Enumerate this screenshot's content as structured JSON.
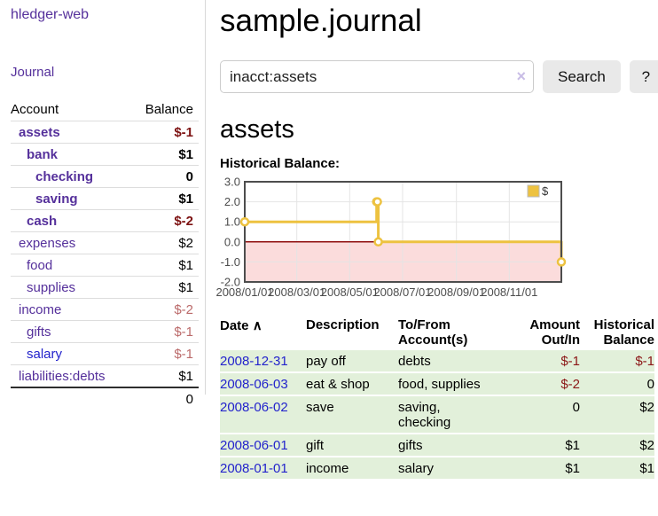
{
  "app": {
    "title": "hledger-web"
  },
  "colors": {
    "link_purple": "#55309b",
    "link_blue": "#2323cc",
    "negative_strong": "#7d1212",
    "negative_muted": "#bb6a6a",
    "register_negative": "#8b1616",
    "register_row_green": "#e2f0da",
    "chart_gold": "#edc240"
  },
  "sidebar": {
    "nav": {
      "journal_label": "Journal"
    },
    "accounts": {
      "headers": {
        "account": "Account",
        "balance": "Balance"
      },
      "rows": [
        {
          "name": "assets",
          "depth": 0,
          "bold": true,
          "link_color": "purple",
          "balance": "$-1",
          "balance_class": "neg-strong"
        },
        {
          "name": "bank",
          "depth": 1,
          "bold": true,
          "link_color": "purple",
          "balance": "$1",
          "balance_class": "pos-strong"
        },
        {
          "name": "checking",
          "depth": 2,
          "bold": true,
          "link_color": "purple",
          "balance": "0",
          "balance_class": "pos-strong"
        },
        {
          "name": "saving",
          "depth": 2,
          "bold": true,
          "link_color": "purple",
          "balance": "$1",
          "balance_class": "pos-strong"
        },
        {
          "name": "cash",
          "depth": 1,
          "bold": true,
          "link_color": "purple",
          "balance": "$-2",
          "balance_class": "neg-strong"
        },
        {
          "name": "expenses",
          "depth": 0,
          "bold": false,
          "link_color": "purple",
          "balance": "$2",
          "balance_class": "pos"
        },
        {
          "name": "food",
          "depth": 1,
          "bold": false,
          "link_color": "purple",
          "balance": "$1",
          "balance_class": "pos"
        },
        {
          "name": "supplies",
          "depth": 1,
          "bold": false,
          "link_color": "purple",
          "balance": "$1",
          "balance_class": "pos"
        },
        {
          "name": "income",
          "depth": 0,
          "bold": false,
          "link_color": "purple",
          "balance": "$-2",
          "balance_class": "neg-muted"
        },
        {
          "name": "gifts",
          "depth": 1,
          "bold": false,
          "link_color": "purple",
          "balance": "$-1",
          "balance_class": "neg-muted"
        },
        {
          "name": "salary",
          "depth": 1,
          "bold": false,
          "link_color": "blue",
          "balance": "$-1",
          "balance_class": "neg-muted"
        },
        {
          "name": "liabilities:debts",
          "depth": 0,
          "bold": false,
          "link_color": "purple",
          "balance": "$1",
          "balance_class": "pos"
        }
      ],
      "total": "0"
    }
  },
  "main": {
    "title": "sample.journal",
    "search": {
      "value": "inacct:assets",
      "clear_icon": "×",
      "button_label": "Search",
      "help_label": "?"
    },
    "account_heading": "assets",
    "chart_label": "Historical Balance:"
  },
  "chart_data": {
    "type": "line",
    "step": true,
    "title": "Historical Balance:",
    "series": [
      {
        "name": "$",
        "color": "#edc240",
        "points": [
          [
            "2008-01-01",
            1.0
          ],
          [
            "2008-06-01",
            2.0
          ],
          [
            "2008-06-02",
            2.0
          ],
          [
            "2008-06-03",
            0.0
          ],
          [
            "2008-12-31",
            -1.0
          ]
        ]
      }
    ],
    "xrange": [
      "2008-01-01",
      "2008-12-31"
    ],
    "ylim": [
      -2.0,
      3.0
    ],
    "yticks": [
      "3.0",
      "2.0",
      "1.0",
      "0.0",
      "-1.0",
      "-2.0"
    ],
    "xticks": [
      "2008/01/01",
      "2008/03/01",
      "2008/05/01",
      "2008/07/01",
      "2008/09/01",
      "2008/11/01"
    ],
    "legend": {
      "position": "top-right",
      "label": "$"
    },
    "grid": true,
    "grid_color": "#e4e4e4",
    "negative_region_color": "#fbdcdc",
    "zero_line_color": "#8f1010",
    "border_color": "#4d4d4d",
    "marker_fill": "#ffffff"
  },
  "register": {
    "headers": {
      "date": "Date",
      "sort_arrow": "∧",
      "description": "Description",
      "accounts": "To/From\nAccount(s)",
      "amount": "Amount\nOut/In",
      "balance": "Historical\nBalance"
    },
    "rows": [
      {
        "date": "2008-12-31",
        "description": "pay off",
        "accounts": "debts",
        "amount": "$-1",
        "amount_neg": true,
        "balance": "$-1",
        "balance_neg": true
      },
      {
        "date": "2008-06-03",
        "description": "eat & shop",
        "accounts": "food, supplies",
        "amount": "$-2",
        "amount_neg": true,
        "balance": "0",
        "balance_neg": false
      },
      {
        "date": "2008-06-02",
        "description": "save",
        "accounts": "saving,\nchecking",
        "amount": "0",
        "amount_neg": false,
        "balance": "$2",
        "balance_neg": false
      },
      {
        "date": "2008-06-01",
        "description": "gift",
        "accounts": "gifts",
        "amount": "$1",
        "amount_neg": false,
        "balance": "$2",
        "balance_neg": false
      },
      {
        "date": "2008-01-01",
        "description": "income",
        "accounts": "salary",
        "amount": "$1",
        "amount_neg": false,
        "balance": "$1",
        "balance_neg": false
      }
    ]
  }
}
